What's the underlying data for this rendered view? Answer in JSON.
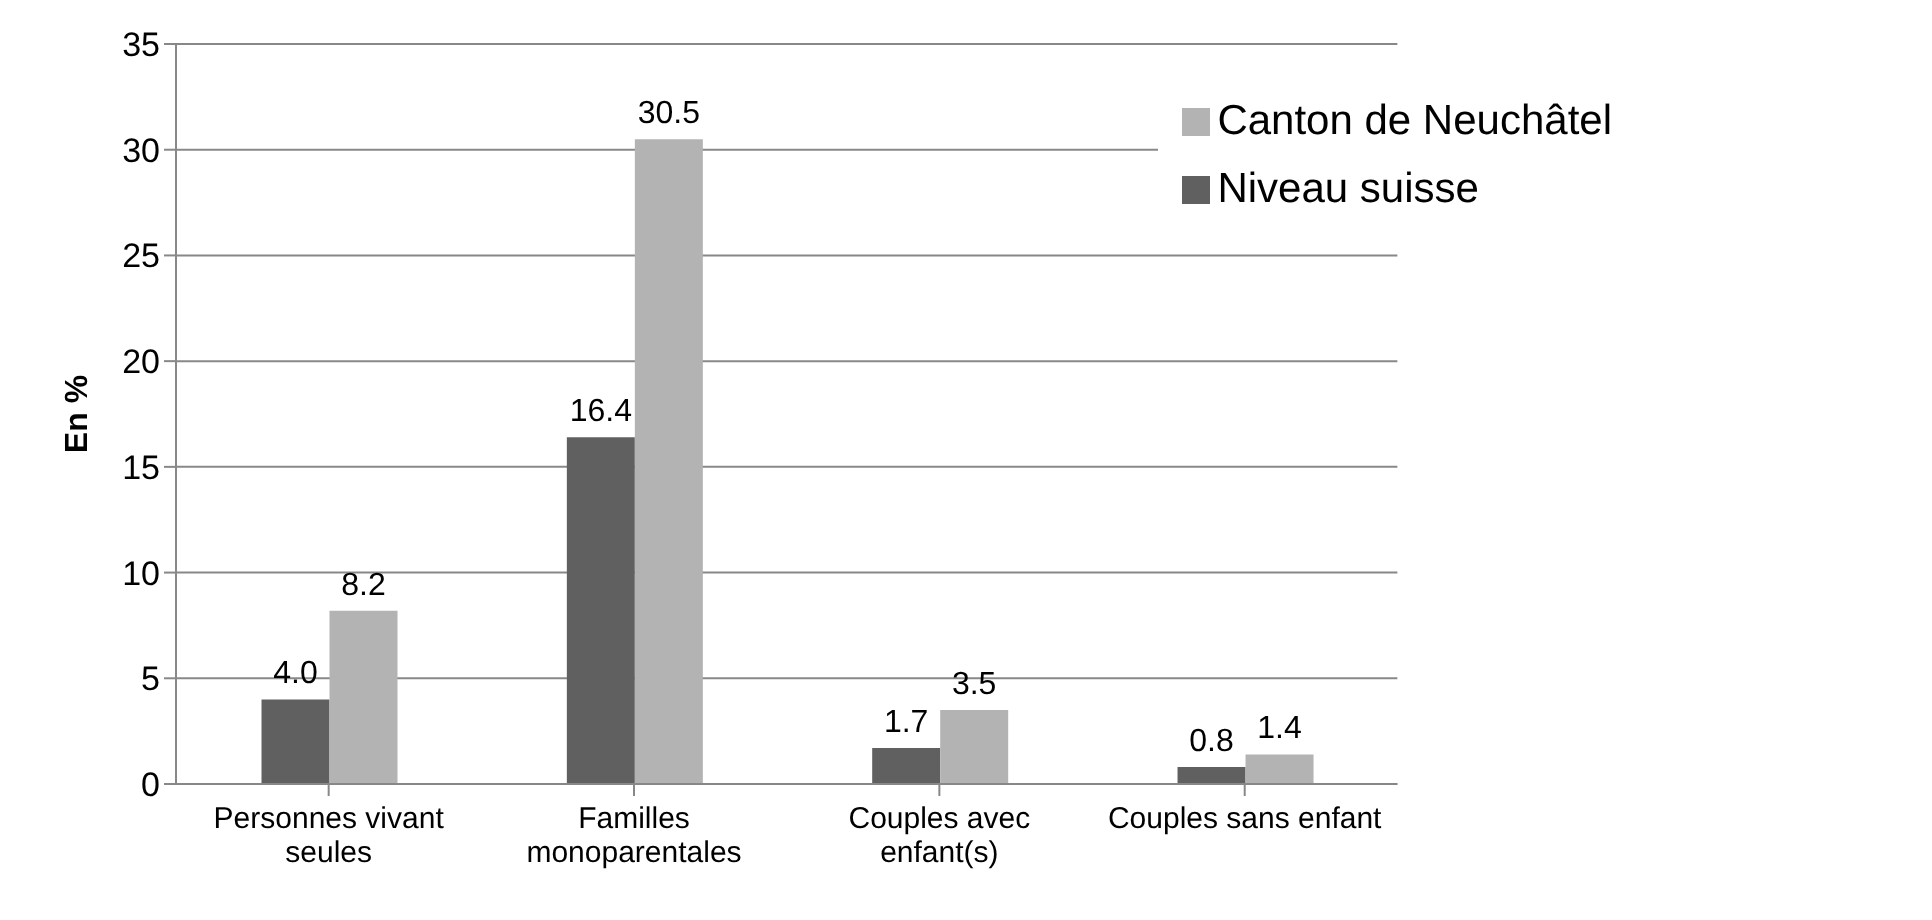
{
  "chart_data": {
    "type": "bar",
    "ylabel": "En %",
    "categories": [
      "Personnes vivant seules",
      "Familles monoparentales",
      "Couples avec enfant(s)",
      "Couples sans enfant"
    ],
    "series": [
      {
        "name": "Niveau suisse",
        "color": "#606060",
        "values": [
          4.0,
          16.4,
          1.7,
          0.8
        ],
        "value_labels": [
          "4.0",
          "16.4",
          "1.7",
          "0.8"
        ]
      },
      {
        "name": "Canton de Neuchâtel",
        "color": "#b3b3b3",
        "values": [
          8.2,
          30.5,
          3.5,
          1.4
        ],
        "value_labels": [
          "8.2",
          "30.5",
          "3.5",
          "1.4"
        ]
      }
    ],
    "ylim": [
      0,
      35
    ],
    "yticks": [
      0,
      5,
      10,
      15,
      20,
      25,
      30,
      35
    ],
    "grid": "y",
    "legend": "top right"
  }
}
